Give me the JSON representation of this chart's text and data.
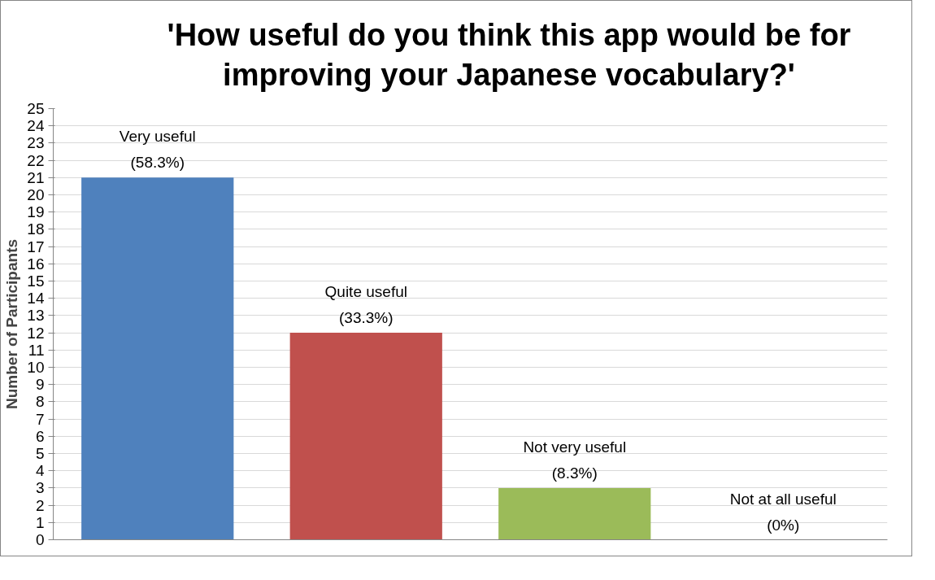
{
  "chart_data": {
    "type": "bar",
    "title": "'How useful do you think this app would be for improving your Japanese vocabulary?'",
    "ylabel": "Number of Participants",
    "categories": [
      "Very useful",
      "Quite useful",
      "Not very useful",
      "Not at all useful"
    ],
    "values": [
      21,
      12,
      3,
      0
    ],
    "colors": [
      "#4f81bd",
      "#c0504d",
      "#9bbb59",
      "#8064a2"
    ],
    "annotations": [
      {
        "text": "(58.3%)",
        "x": "Very useful",
        "y": 21
      },
      {
        "text": "(33.3%)",
        "x": "Quite useful",
        "y": 12
      },
      {
        "text": "(8.3%)",
        "x": "Not very useful",
        "y": 3
      },
      {
        "text": "(0%)",
        "x": "Not at all useful",
        "y": 0
      }
    ],
    "ylim": [
      0,
      25
    ],
    "yticks": [
      0,
      1,
      2,
      3,
      4,
      5,
      6,
      7,
      8,
      9,
      10,
      11,
      12,
      13,
      14,
      15,
      16,
      17,
      18,
      19,
      20,
      21,
      22,
      23,
      24,
      25
    ],
    "grid": "y",
    "tick_labels": "y"
  }
}
